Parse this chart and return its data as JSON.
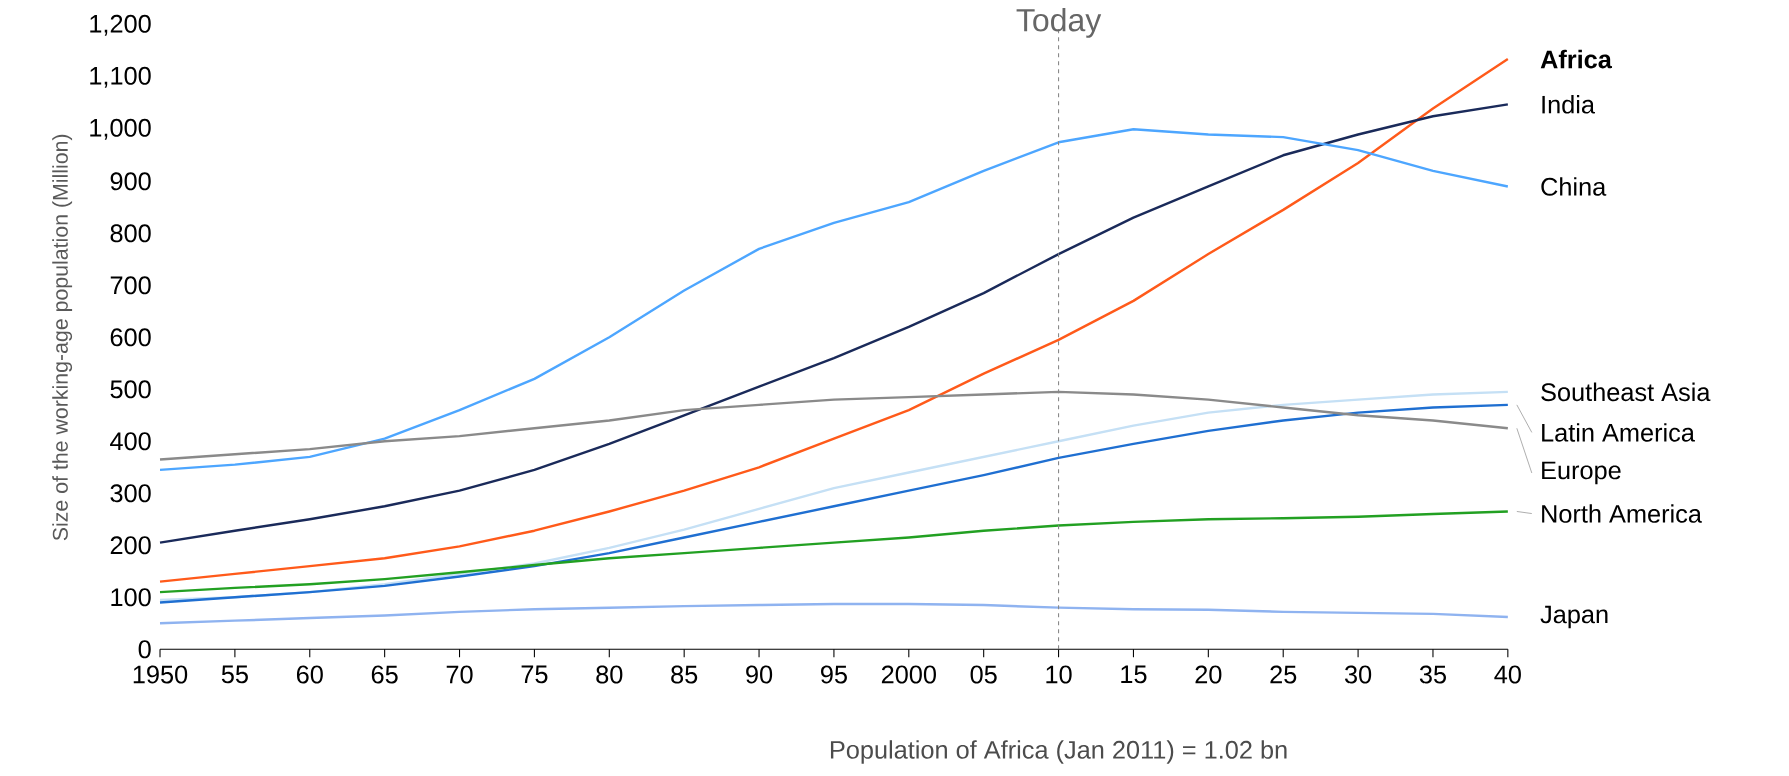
{
  "chart_data": {
    "type": "line",
    "ylabel": "Size of the working-age population (Million)",
    "x": [
      1950,
      1955,
      1960,
      1965,
      1970,
      1975,
      1980,
      1985,
      1990,
      1995,
      2000,
      2005,
      2010,
      2015,
      2020,
      2025,
      2030,
      2035,
      2040
    ],
    "xlim": [
      1950,
      2040
    ],
    "xticks": [
      1950,
      {
        "value": 1955,
        "label": "55"
      },
      {
        "value": 1960,
        "label": "60"
      },
      {
        "value": 1965,
        "label": "65"
      },
      {
        "value": 1970,
        "label": "70"
      },
      {
        "value": 1975,
        "label": "75"
      },
      {
        "value": 1980,
        "label": "80"
      },
      {
        "value": 1985,
        "label": "85"
      },
      {
        "value": 1990,
        "label": "90"
      },
      {
        "value": 1995,
        "label": "95"
      },
      2000,
      {
        "value": 2005,
        "label": "05"
      },
      {
        "value": 2010,
        "label": "10"
      },
      {
        "value": 2015,
        "label": "15"
      },
      {
        "value": 2020,
        "label": "20"
      },
      {
        "value": 2025,
        "label": "25"
      },
      {
        "value": 2030,
        "label": "30"
      },
      {
        "value": 2035,
        "label": "35"
      },
      {
        "value": 2040,
        "label": "40"
      }
    ],
    "ylim": [
      0,
      1200
    ],
    "yticks": [
      0,
      100,
      200,
      300,
      400,
      500,
      600,
      700,
      800,
      900,
      {
        "value": 1000,
        "label": "1,000"
      },
      {
        "value": 1100,
        "label": "1,100"
      },
      {
        "value": 1200,
        "label": "1,200"
      }
    ],
    "marker": "none",
    "line_style": "solid",
    "series": [
      {
        "name": "**Africa**",
        "color": "#ff5a1a",
        "values": [
          130,
          145,
          160,
          175,
          198,
          228,
          265,
          305,
          350,
          405,
          460,
          530,
          595,
          670,
          760,
          845,
          935,
          1040,
          1135
        ]
      },
      {
        "name": "India",
        "color": "#1a2a5a",
        "values": [
          205,
          228,
          250,
          275,
          305,
          345,
          395,
          450,
          505,
          560,
          620,
          685,
          760,
          830,
          890,
          950,
          990,
          1025,
          1048
        ]
      },
      {
        "name": "China",
        "color": "#4da6ff",
        "values": [
          345,
          355,
          370,
          405,
          460,
          520,
          600,
          690,
          770,
          820,
          860,
          920,
          975,
          1000,
          990,
          985,
          960,
          920,
          890
        ]
      },
      {
        "name": "Southeast Asia",
        "color": "#c5e0f5",
        "values": [
          95,
          100,
          110,
          125,
          145,
          165,
          195,
          230,
          270,
          310,
          340,
          370,
          400,
          430,
          455,
          470,
          480,
          490,
          495
        ]
      },
      {
        "name": "Latin America",
        "color": "#1f6fd1",
        "values": [
          90,
          100,
          110,
          122,
          140,
          160,
          185,
          215,
          245,
          275,
          305,
          335,
          368,
          395,
          420,
          440,
          455,
          465,
          470
        ]
      },
      {
        "name": "Europe",
        "color": "#8a8a8a",
        "values": [
          365,
          375,
          385,
          400,
          410,
          425,
          440,
          460,
          470,
          480,
          485,
          490,
          495,
          490,
          480,
          465,
          450,
          440,
          425
        ]
      },
      {
        "name": "North America",
        "color": "#22a022",
        "values": [
          110,
          118,
          125,
          135,
          148,
          162,
          175,
          185,
          195,
          205,
          215,
          228,
          238,
          245,
          250,
          252,
          255,
          260,
          265
        ]
      },
      {
        "name": "Japan",
        "color": "#8fb3f0",
        "values": [
          50,
          55,
          60,
          65,
          72,
          77,
          80,
          83,
          85,
          87,
          87,
          85,
          80,
          77,
          76,
          72,
          70,
          68,
          62
        ]
      }
    ],
    "ref_lines": [
      {
        "axis": "x",
        "value": 2010,
        "label": "Today",
        "color": "#888888",
        "line_style": "dashed"
      }
    ],
    "annotations": [
      "Population of Africa (Jan 2011) = 1.02 bn"
    ]
  }
}
